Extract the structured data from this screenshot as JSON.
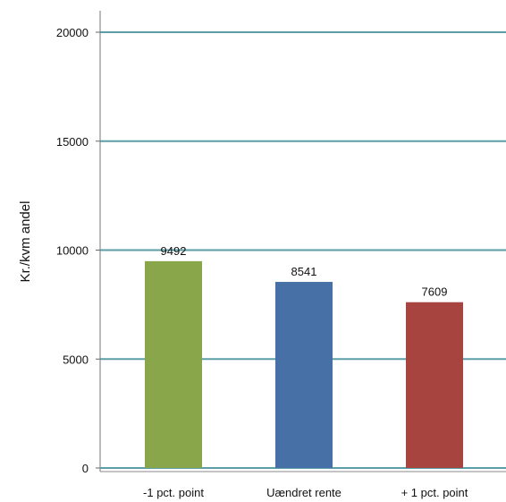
{
  "chart_data": {
    "type": "bar",
    "title": "",
    "xlabel": "",
    "ylabel": "Kr./kvm andel",
    "categories": [
      "-1 pct. point",
      "Uændret rente",
      "+ 1 pct. point"
    ],
    "values": [
      9492,
      8541,
      7609
    ],
    "data_labels": [
      "9492",
      "8541",
      "7609"
    ],
    "bar_colors": [
      "#8aa64b",
      "#4670a6",
      "#a84440"
    ],
    "ylim": [
      0,
      20000
    ],
    "yticks": [
      0,
      5000,
      10000,
      15000,
      20000
    ],
    "ytick_labels": [
      "0",
      "5000",
      "10000",
      "15000",
      "20000"
    ],
    "grid": true,
    "grid_color": "#5b9ea6",
    "legend": "none"
  }
}
